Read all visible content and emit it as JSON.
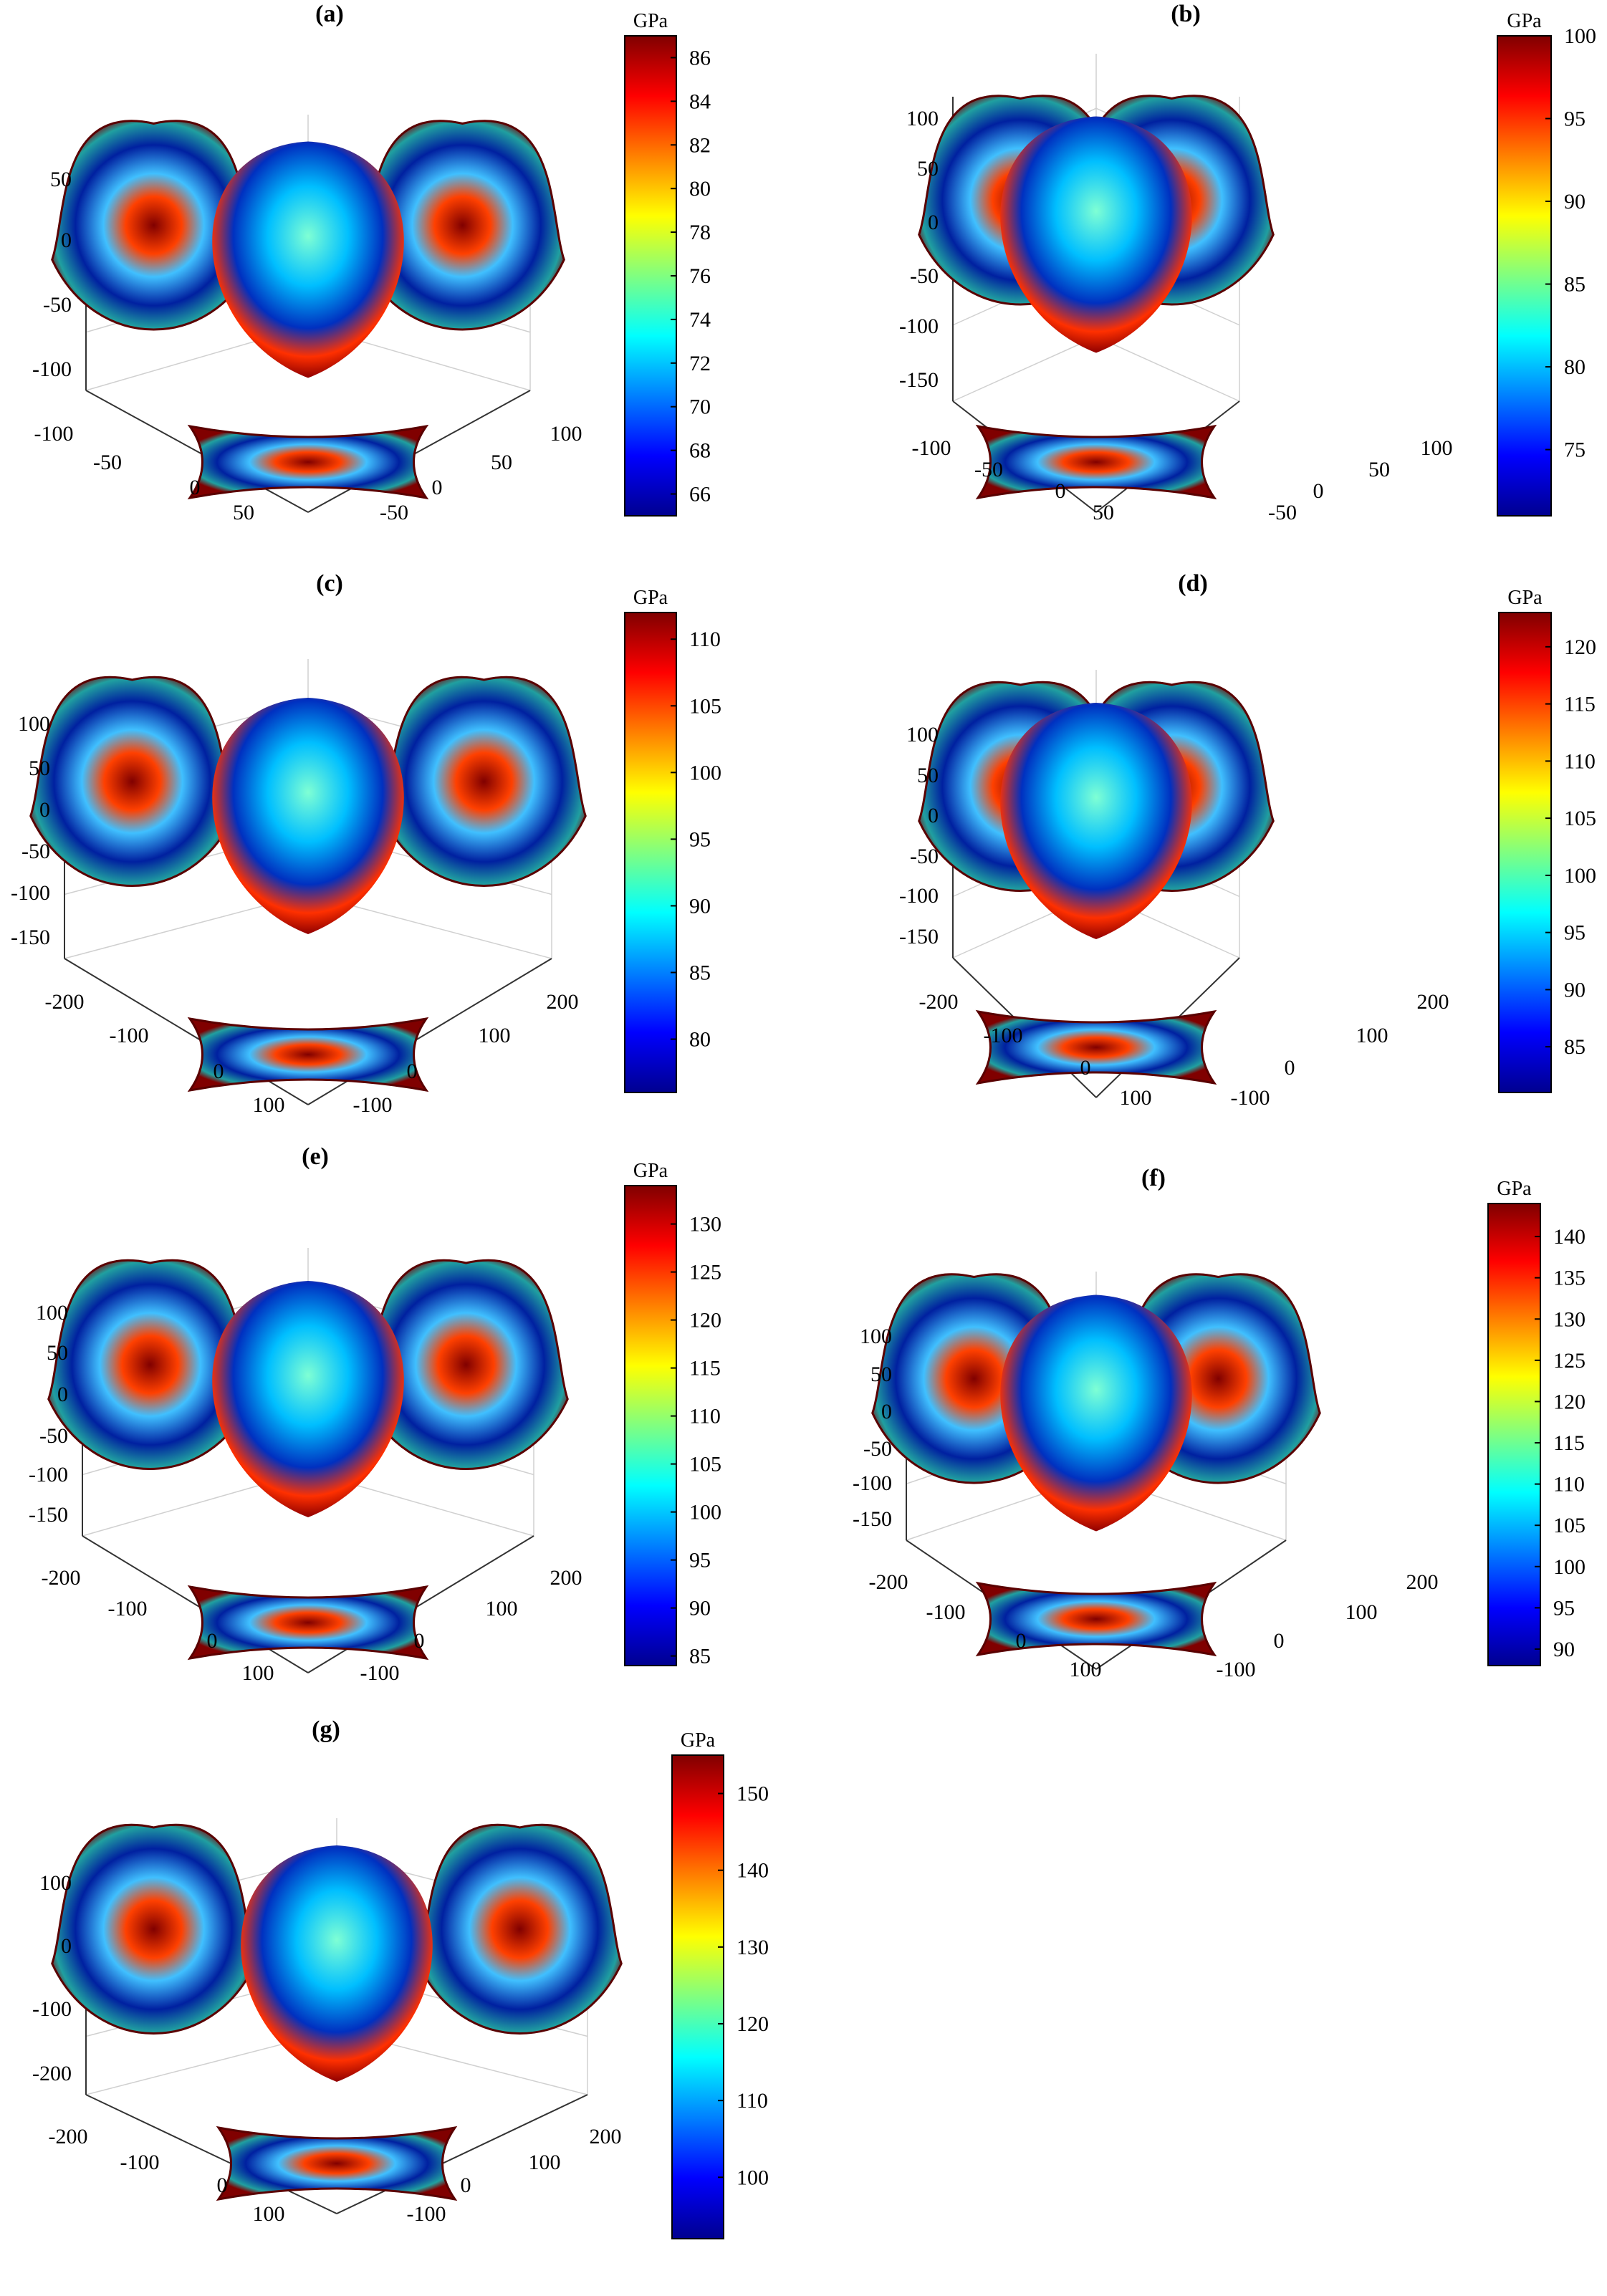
{
  "colormap": [
    "#00008f",
    "#0000ff",
    "#0080ff",
    "#00ffff",
    "#80ff80",
    "#ffff00",
    "#ff8000",
    "#ff0000",
    "#800000"
  ],
  "chart_data": [
    {
      "type": "3d-surface",
      "label": "(a)",
      "colorbar": {
        "unit": "GPa",
        "min": 65,
        "max": 87,
        "ticks": [
          "86",
          "84",
          "82",
          "80",
          "78",
          "76",
          "74",
          "72",
          "70",
          "68",
          "66"
        ]
      },
      "zticks": [
        "50",
        "0",
        "-50",
        "-100"
      ],
      "xticks": [
        "-100",
        "-50",
        "0",
        "50"
      ],
      "yticks": [
        "100",
        "50",
        "0",
        "-50"
      ]
    },
    {
      "type": "3d-surface",
      "label": "(b)",
      "colorbar": {
        "unit": "GPa",
        "min": 71,
        "max": 100,
        "ticks": [
          "100",
          "95",
          "90",
          "85",
          "80",
          "75"
        ]
      },
      "zticks": [
        "100",
        "50",
        "0",
        "-50",
        "-100",
        "-150"
      ],
      "xticks": [
        "-100",
        "-50",
        "0",
        "50"
      ],
      "yticks": [
        "100",
        "50",
        "0",
        "-50"
      ]
    },
    {
      "type": "3d-surface",
      "label": "(c)",
      "colorbar": {
        "unit": "GPa",
        "min": 76,
        "max": 112,
        "ticks": [
          "110",
          "105",
          "100",
          "95",
          "90",
          "85",
          "80"
        ]
      },
      "zticks": [
        "100",
        "50",
        "0",
        "-50",
        "-100",
        "-150"
      ],
      "xticks": [
        "-200",
        "-100",
        "0",
        "100"
      ],
      "yticks": [
        "200",
        "100",
        "0",
        "-100"
      ]
    },
    {
      "type": "3d-surface",
      "label": "(d)",
      "colorbar": {
        "unit": "GPa",
        "min": 81,
        "max": 123,
        "ticks": [
          "120",
          "115",
          "110",
          "105",
          "100",
          "95",
          "90",
          "85"
        ]
      },
      "zticks": [
        "100",
        "50",
        "0",
        "-50",
        "-100",
        "-150"
      ],
      "xticks": [
        "-200",
        "-100",
        "0",
        "100"
      ],
      "yticks": [
        "200",
        "100",
        "0",
        "-100"
      ]
    },
    {
      "type": "3d-surface",
      "label": "(e)",
      "colorbar": {
        "unit": "GPa",
        "min": 84,
        "max": 134,
        "ticks": [
          "130",
          "125",
          "120",
          "115",
          "110",
          "105",
          "100",
          "95",
          "90",
          "85"
        ]
      },
      "zticks": [
        "100",
        "50",
        "0",
        "-50",
        "-100",
        "-150"
      ],
      "xticks": [
        "-200",
        "-100",
        "0",
        "100"
      ],
      "yticks": [
        "200",
        "100",
        "0",
        "-100"
      ]
    },
    {
      "type": "3d-surface",
      "label": "(f)",
      "colorbar": {
        "unit": "GPa",
        "min": 88,
        "max": 144,
        "ticks": [
          "140",
          "135",
          "130",
          "125",
          "120",
          "115",
          "110",
          "105",
          "100",
          "95",
          "90"
        ]
      },
      "zticks": [
        "100",
        "50",
        "0",
        "-50",
        "-100",
        "-150"
      ],
      "xticks": [
        "-200",
        "-100",
        "0",
        "100"
      ],
      "yticks": [
        "200",
        "100",
        "0",
        "-100"
      ]
    },
    {
      "type": "3d-surface",
      "label": "(g)",
      "colorbar": {
        "unit": "GPa",
        "min": 92,
        "max": 155,
        "ticks": [
          "150",
          "140",
          "130",
          "120",
          "110",
          "100"
        ]
      },
      "zticks": [
        "100",
        "0",
        "-100",
        "-200"
      ],
      "xticks": [
        "-200",
        "-100",
        "0",
        "100"
      ],
      "yticks": [
        "200",
        "100",
        "0",
        "-100"
      ]
    }
  ]
}
